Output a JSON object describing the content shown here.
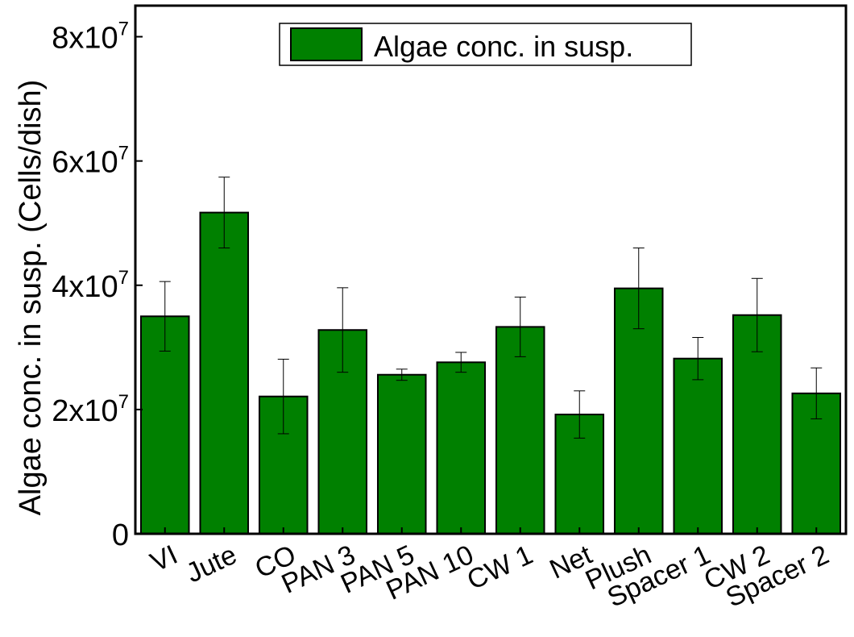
{
  "chart_data": {
    "type": "bar",
    "title": "",
    "xlabel": "",
    "ylabel": "Algae conc. in susp. (Cells/dish)",
    "ylim": [
      0,
      85000000
    ],
    "yticks": [
      {
        "value": 0,
        "mantissa": "0",
        "exponent": ""
      },
      {
        "value": 20000000,
        "mantissa": "2x10",
        "exponent": "7"
      },
      {
        "value": 40000000,
        "mantissa": "4x10",
        "exponent": "7"
      },
      {
        "value": 60000000,
        "mantissa": "6x10",
        "exponent": "7"
      },
      {
        "value": 80000000,
        "mantissa": "8x10",
        "exponent": "7"
      }
    ],
    "categories": [
      "VI",
      "Jute",
      "CO",
      "PAN 3",
      "PAN 5",
      "PAN 10",
      "CW 1",
      "Net",
      "Plush",
      "Spacer 1",
      "CW 2",
      "Spacer 2"
    ],
    "series": [
      {
        "name": "Algae conc. in susp.",
        "color": "#008000",
        "values": [
          35000000,
          51700000,
          22100000,
          32800000,
          25600000,
          27600000,
          33300000,
          19200000,
          39500000,
          28200000,
          35200000,
          22600000
        ],
        "errors": [
          5600000,
          5700000,
          6000000,
          6800000,
          900000,
          1600000,
          4800000,
          3800000,
          6500000,
          3400000,
          5900000,
          4100000
        ]
      }
    ],
    "legend": "top-center",
    "grid": false
  }
}
